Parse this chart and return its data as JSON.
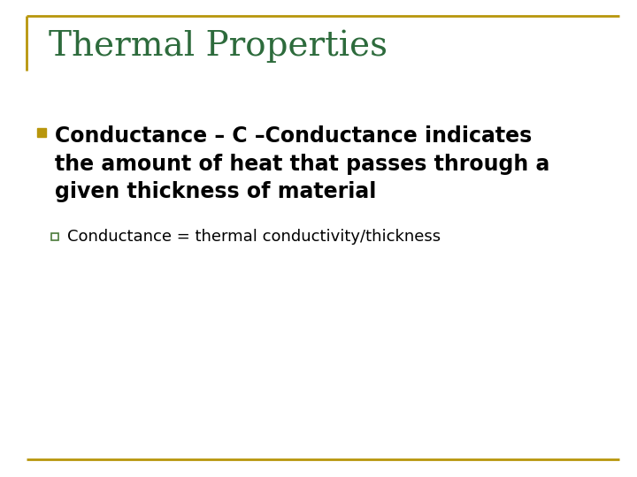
{
  "title": "Thermal Properties",
  "title_color": "#2D6B3C",
  "title_fontsize": 28,
  "background_color": "#FFFFFF",
  "border_color": "#B8960C",
  "border_linewidth": 2.0,
  "bullet_square_color": "#B8960C",
  "sub_bullet_outline_color": "#4A7A3A",
  "bullet1_text_line1": "Conductance – C –Conductance indicates",
  "bullet1_text_line2": "the amount of heat that passes through a",
  "bullet1_text_line3": "given thickness of material",
  "bullet1_fontsize": 17,
  "sub_bullet_text": "Conductance = thermal conductivity/thickness",
  "sub_bullet_fontsize": 13,
  "text_color": "#000000"
}
